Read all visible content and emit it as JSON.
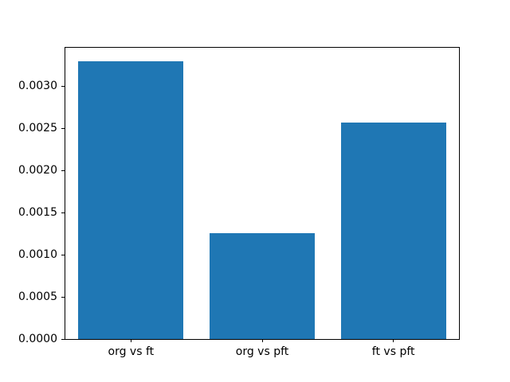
{
  "chart_data": {
    "type": "bar",
    "categories": [
      "org vs ft",
      "org vs pft",
      "ft vs pft"
    ],
    "values": [
      0.00329,
      0.00126,
      0.00257
    ],
    "title": "",
    "xlabel": "",
    "ylabel": "",
    "ylim": [
      0,
      0.003455
    ],
    "yticks": [
      0.0,
      0.0005,
      0.001,
      0.0015,
      0.002,
      0.0025,
      0.003
    ],
    "ytick_labels": [
      "0.0000",
      "0.0005",
      "0.0010",
      "0.0015",
      "0.0020",
      "0.0025",
      "0.0030"
    ],
    "bar_color": "#1f77b4",
    "bar_width_fraction": 0.8,
    "grid": false,
    "legend_position": "none",
    "axes_edge_color": "#000000",
    "background_color": "#ffffff"
  }
}
